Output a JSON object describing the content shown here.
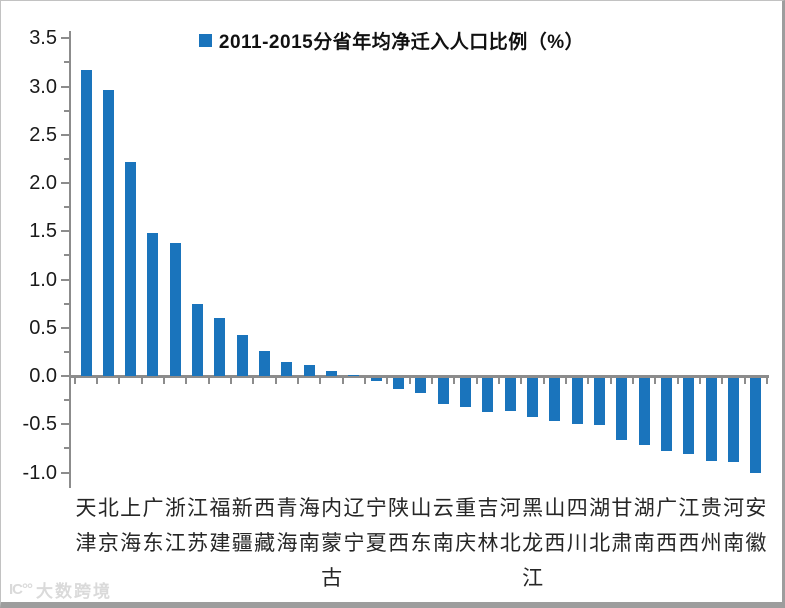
{
  "watermark": {
    "logo": "IC°°",
    "text": "大数跨境"
  },
  "chart_data": {
    "type": "bar",
    "legend": "2011-2015分省年均净迁入人口比例（%）",
    "title": "",
    "xlabel": "",
    "ylabel": "",
    "categories": [
      "天津",
      "北京",
      "上海",
      "广东",
      "浙江",
      "江苏",
      "福建",
      "新疆",
      "西藏",
      "青海",
      "海南",
      "内蒙古",
      "辽宁",
      "宁夏",
      "陕西",
      "山东",
      "云南",
      "重庆",
      "吉林",
      "河北",
      "黑龙江",
      "山西",
      "四川",
      "湖北",
      "甘肃",
      "湖南",
      "广西",
      "江西",
      "贵州",
      "河南",
      "安徽"
    ],
    "values": [
      3.17,
      2.96,
      2.22,
      1.48,
      1.38,
      0.75,
      0.6,
      0.42,
      0.26,
      0.14,
      0.11,
      0.05,
      0.01,
      -0.05,
      -0.13,
      -0.18,
      -0.29,
      -0.32,
      -0.37,
      -0.36,
      -0.43,
      -0.47,
      -0.5,
      -0.51,
      -0.66,
      -0.72,
      -0.78,
      -0.81,
      -0.88,
      -0.89,
      -1.01
    ],
    "ylim": [
      -1.0,
      3.5
    ],
    "ytick_major": 0.5,
    "ytick_minor": 0.25,
    "ytick_labels": [
      "3.5",
      "3.0",
      "2.5",
      "2.0",
      "1.5",
      "1.0",
      "0.5",
      "0.0",
      "-0.5",
      "-1.0"
    ],
    "grid": "off",
    "legend_position": "top-center",
    "bar_color": "#1a74bc",
    "axis_color": "#8c8c8c",
    "background_color": "#ffffff"
  }
}
